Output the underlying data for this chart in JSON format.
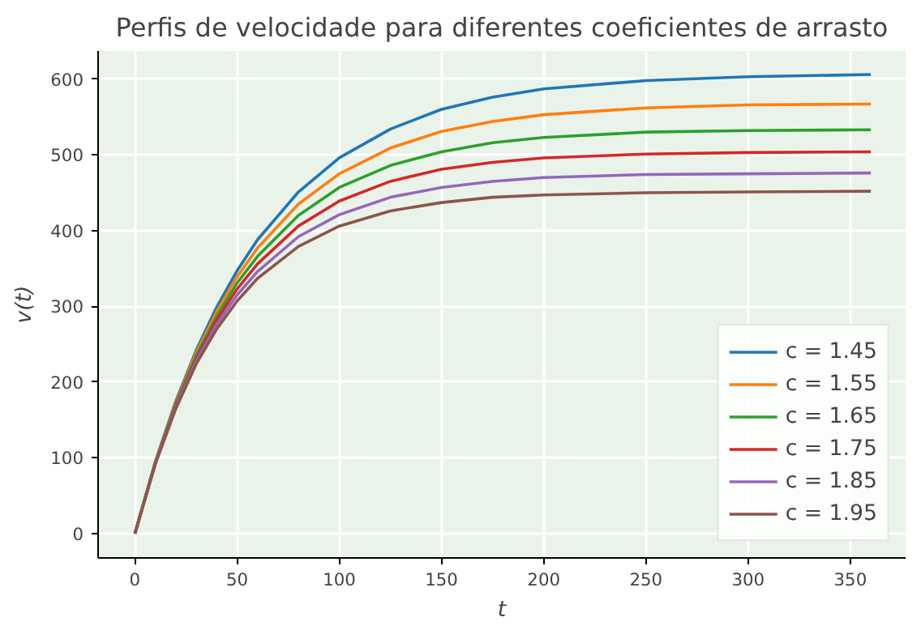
{
  "chart_data": {
    "type": "line",
    "title": "Perfis de velocidade para diferentes coeficientes de arrasto",
    "xlabel": "t",
    "ylabel": "v(t)",
    "x": [
      0,
      10,
      20,
      30,
      40,
      50,
      60,
      80,
      100,
      125,
      150,
      175,
      200,
      250,
      300,
      360
    ],
    "series": [
      {
        "name": "c = 1.45",
        "color": "#1f77b4",
        "values": [
          0,
          95,
          175,
          242,
          299,
          347,
          388,
          451,
          496,
          534,
          560,
          576,
          587,
          598,
          603,
          606
        ]
      },
      {
        "name": "c = 1.55",
        "color": "#ff7f0e",
        "values": [
          0,
          94,
          173,
          239,
          293,
          339,
          377,
          435,
          475,
          509,
          531,
          544,
          553,
          562,
          566,
          567
        ]
      },
      {
        "name": "c = 1.65",
        "color": "#2ca02c",
        "values": [
          0,
          94,
          171,
          235,
          287,
          331,
          366,
          420,
          457,
          486,
          504,
          516,
          523,
          530,
          532,
          533
        ]
      },
      {
        "name": "c = 1.75",
        "color": "#d62728",
        "values": [
          0,
          93,
          169,
          231,
          282,
          323,
          356,
          406,
          439,
          465,
          481,
          490,
          496,
          501,
          503,
          504
        ]
      },
      {
        "name": "c = 1.85",
        "color": "#9467bd",
        "values": [
          0,
          93,
          167,
          228,
          276,
          315,
          346,
          392,
          421,
          444,
          457,
          465,
          470,
          474,
          475,
          476
        ]
      },
      {
        "name": "c = 1.95",
        "color": "#8c564b",
        "values": [
          0,
          92,
          165,
          224,
          270,
          307,
          337,
          379,
          406,
          426,
          437,
          444,
          447,
          450,
          451,
          452
        ]
      }
    ],
    "xlim": [
      -18,
      377
    ],
    "ylim": [
      -32,
      637
    ],
    "xticks": [
      0,
      50,
      100,
      150,
      200,
      250,
      300,
      350
    ],
    "yticks": [
      0,
      100,
      200,
      300,
      400,
      500,
      600
    ],
    "grid": true,
    "legend": "bottom right",
    "marker": "none",
    "line_style": "solid"
  }
}
